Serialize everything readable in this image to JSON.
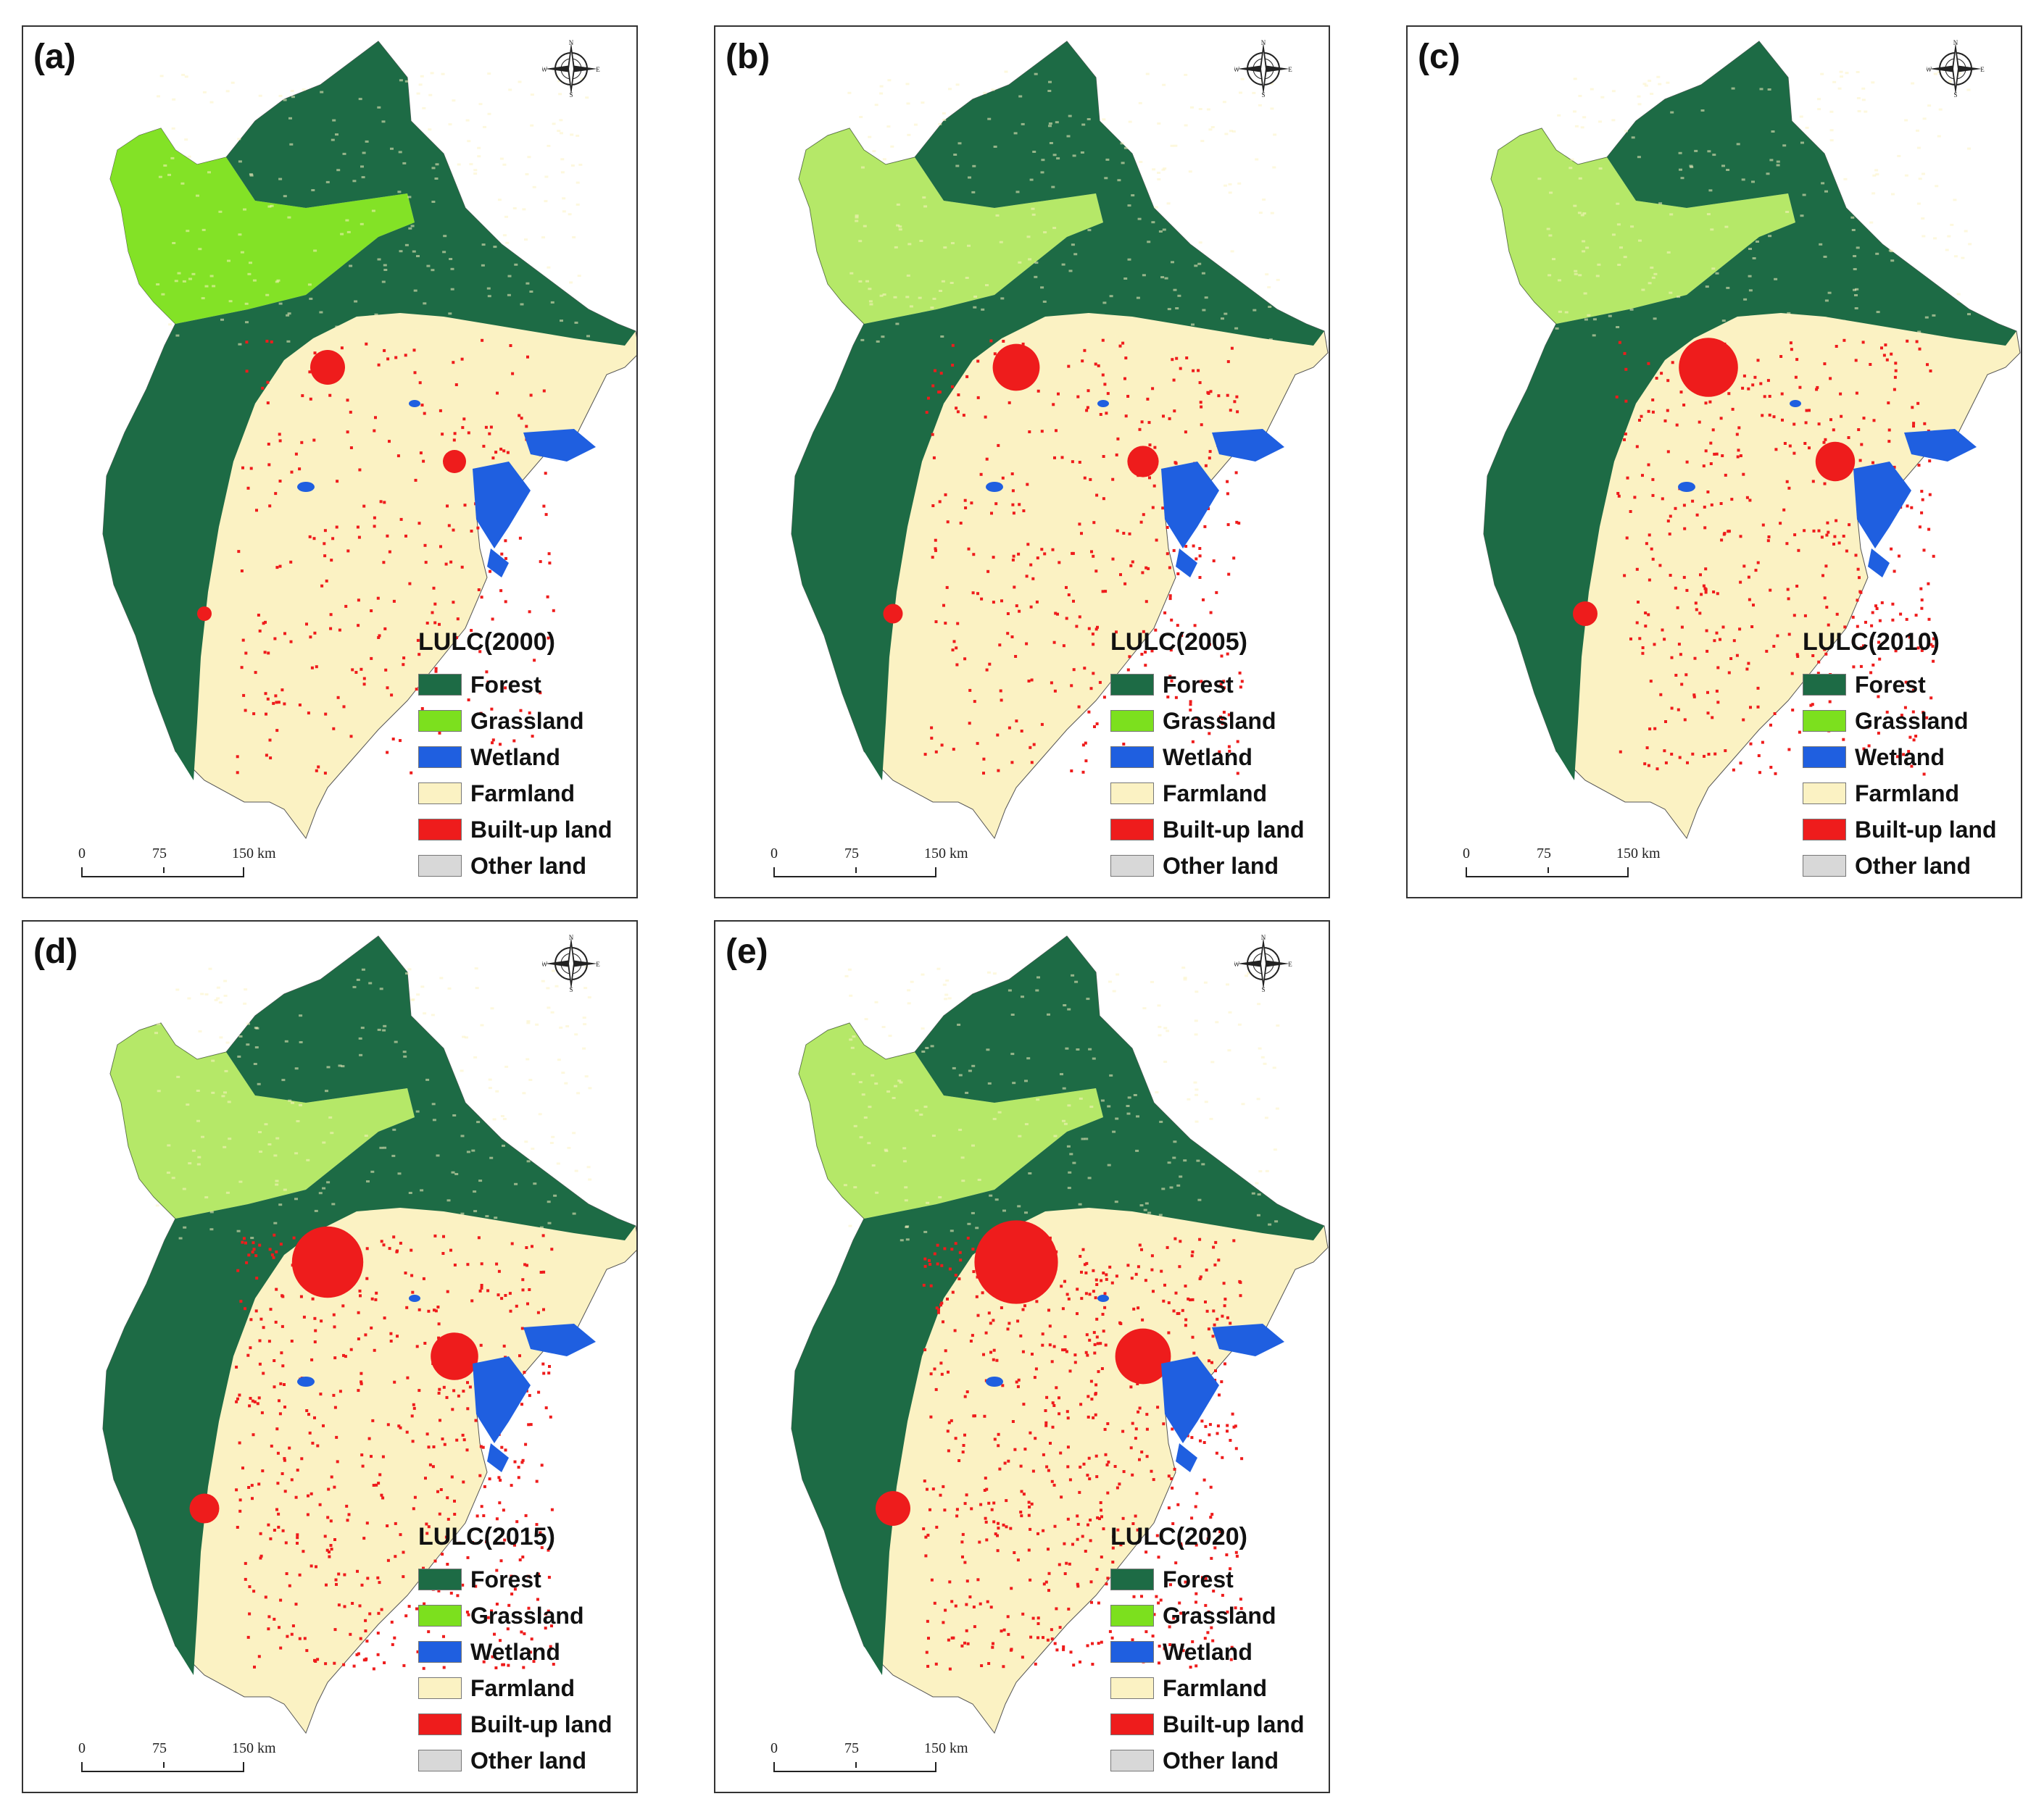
{
  "figure": {
    "legend_items": [
      {
        "label": "Forest",
        "color": "#1d6b45"
      },
      {
        "label": "Grassland",
        "color": "#7ce01e"
      },
      {
        "label": "Wetland",
        "color": "#1f5fe0"
      },
      {
        "label": "Farmland",
        "color": "#fbf2c3"
      },
      {
        "label": "Built-up land",
        "color": "#ee1c1c"
      },
      {
        "label": "Other land",
        "color": "#d8d8d8"
      }
    ],
    "scale": {
      "zero": "0",
      "mid": "75",
      "end": "150 km"
    },
    "compass": {
      "north": "N",
      "south": "S",
      "east": "E",
      "west": "W"
    }
  },
  "panels": [
    {
      "label": "(a)",
      "legend_title": "LULC(2000)"
    },
    {
      "label": "(b)",
      "legend_title": "LULC(2005)"
    },
    {
      "label": "(c)",
      "legend_title": "LULC(2010)"
    },
    {
      "label": "(d)",
      "legend_title": "LULC(2015)"
    },
    {
      "label": "(e)",
      "legend_title": "LULC(2020)"
    }
  ]
}
